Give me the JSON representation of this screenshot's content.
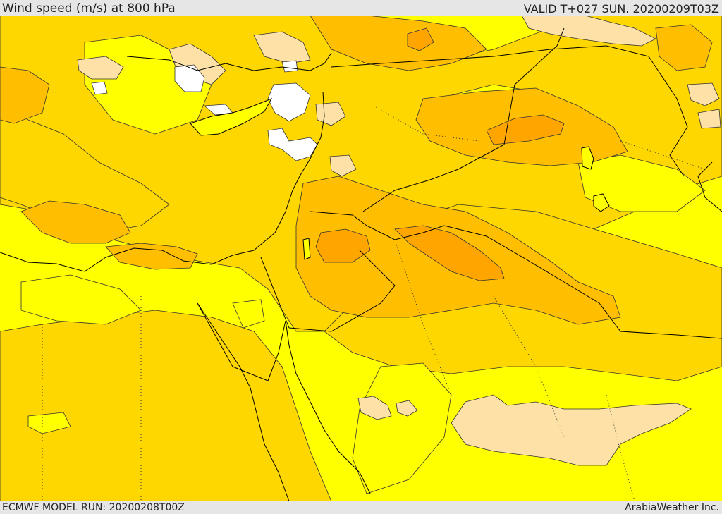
{
  "header": {
    "title": "Wind speed (m/s) at 800 hPa",
    "valid": "VALID T+027 SUN. 20200209T03Z"
  },
  "footer": {
    "model_run": "ECMWF MODEL RUN: 20200208T00Z",
    "brand": "ArabiaWeather Inc."
  },
  "colors": {
    "band_low": "#ffff00",
    "band_mid": "#ffd700",
    "band_high": "#ffbf00",
    "band_higher": "#ffa500",
    "calm_light": "#fde1a6",
    "calm_white": "#ffffff",
    "border": "#000000"
  }
}
